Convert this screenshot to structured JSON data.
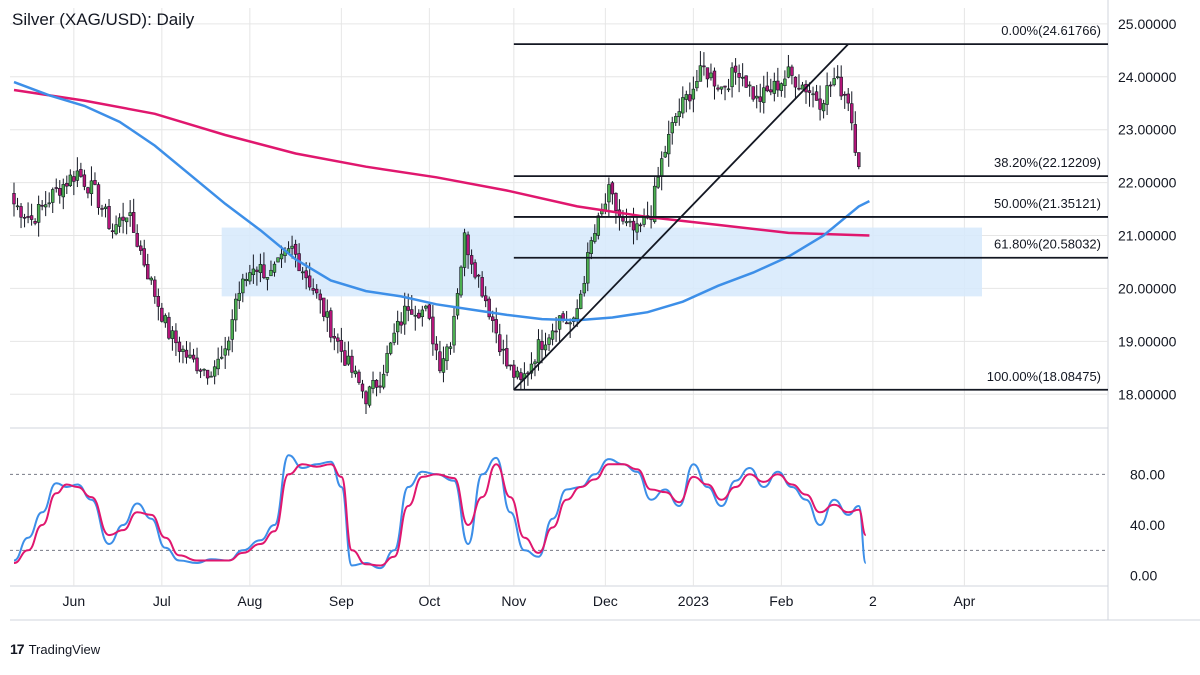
{
  "title": "Silver (XAG/USD): Daily",
  "brand": {
    "logo": "17",
    "name": "TradingView"
  },
  "colors": {
    "bull": "#4caf50",
    "bear": "#b5157a",
    "wick": "#131722",
    "sma_fast": "#3d8fe8",
    "sma_slow": "#e0176e",
    "zone": "#d6e9fb",
    "fib": "#131722",
    "stoch_k": "#3d8fe8",
    "stoch_d": "#e0176e",
    "grid": "#e6e6e6",
    "axis": "#131722"
  },
  "chart_data": [
    {
      "type": "candlestick",
      "panel": "price",
      "ylim": [
        17.4,
        25.3
      ],
      "yticks": [
        "25.00000",
        "24.00000",
        "23.00000",
        "22.00000",
        "21.00000",
        "20.00000",
        "19.00000",
        "18.00000"
      ],
      "ytick_values": [
        25,
        24,
        23,
        22,
        21,
        20,
        19,
        18
      ],
      "xticks": [
        "Jun",
        "Jul",
        "Aug",
        "Sep",
        "Oct",
        "Nov",
        "Dec",
        "2023",
        "Feb",
        "2",
        "Apr"
      ],
      "anchors": [
        [
          0,
          21.6
        ],
        [
          5,
          21.3
        ],
        [
          12,
          21.85
        ],
        [
          18,
          22.2
        ],
        [
          23,
          21.8
        ],
        [
          28,
          21.1
        ],
        [
          32,
          21.45
        ],
        [
          36,
          20.7
        ],
        [
          40,
          19.9
        ],
        [
          44,
          19.15
        ],
        [
          50,
          18.65
        ],
        [
          55,
          18.45
        ],
        [
          60,
          18.7
        ],
        [
          63,
          19.8
        ],
        [
          68,
          20.45
        ],
        [
          73,
          20.25
        ],
        [
          79,
          20.75
        ],
        [
          85,
          20.0
        ],
        [
          90,
          19.25
        ],
        [
          95,
          18.55
        ],
        [
          100,
          17.95
        ],
        [
          104,
          18.3
        ],
        [
          108,
          19.1
        ],
        [
          112,
          19.7
        ],
        [
          117,
          19.55
        ],
        [
          121,
          18.6
        ],
        [
          124,
          19.05
        ],
        [
          128,
          20.95
        ],
        [
          132,
          20.2
        ],
        [
          136,
          19.4
        ],
        [
          140,
          18.55
        ],
        [
          144,
          18.2
        ],
        [
          149,
          18.9
        ],
        [
          155,
          19.45
        ],
        [
          159,
          19.3
        ],
        [
          164,
          20.85
        ],
        [
          169,
          21.8
        ],
        [
          173,
          21.2
        ],
        [
          177,
          21.05
        ],
        [
          181,
          21.45
        ],
        [
          184,
          22.4
        ],
        [
          188,
          23.25
        ],
        [
          192,
          23.7
        ],
        [
          196,
          24.15
        ],
        [
          201,
          23.8
        ],
        [
          206,
          24.15
        ],
        [
          211,
          23.55
        ],
        [
          216,
          23.8
        ],
        [
          220,
          24.05
        ],
        [
          225,
          23.8
        ],
        [
          229,
          23.55
        ],
        [
          233,
          23.95
        ],
        [
          237,
          23.6
        ],
        [
          240,
          22.3
        ]
      ],
      "fib_levels": [
        {
          "label": "0.00%(24.61766)",
          "value": 24.61766
        },
        {
          "label": "38.20%(22.12209)",
          "value": 22.12209
        },
        {
          "label": "50.00%(21.35121)",
          "value": 21.35121
        },
        {
          "label": "61.80%(20.58032)",
          "value": 20.58032
        },
        {
          "label": "100.00%(18.08475)",
          "value": 18.08475
        }
      ],
      "zone": {
        "ymin": 19.85,
        "ymax": 21.15,
        "from": "Jul",
        "to": "Feb"
      },
      "sma_fast": [
        [
          0,
          23.9
        ],
        [
          10,
          23.65
        ],
        [
          20,
          23.45
        ],
        [
          30,
          23.15
        ],
        [
          40,
          22.7
        ],
        [
          50,
          22.15
        ],
        [
          60,
          21.6
        ],
        [
          70,
          21.1
        ],
        [
          80,
          20.55
        ],
        [
          90,
          20.15
        ],
        [
          100,
          19.95
        ],
        [
          110,
          19.85
        ],
        [
          120,
          19.7
        ],
        [
          130,
          19.6
        ],
        [
          140,
          19.5
        ],
        [
          150,
          19.42
        ],
        [
          160,
          19.4
        ],
        [
          170,
          19.45
        ],
        [
          180,
          19.55
        ],
        [
          190,
          19.75
        ],
        [
          200,
          20.05
        ],
        [
          210,
          20.3
        ],
        [
          220,
          20.6
        ],
        [
          230,
          21.0
        ],
        [
          240,
          21.55
        ],
        [
          243,
          21.65
        ]
      ],
      "sma_slow": [
        [
          0,
          23.75
        ],
        [
          20,
          23.55
        ],
        [
          40,
          23.3
        ],
        [
          60,
          22.9
        ],
        [
          80,
          22.55
        ],
        [
          100,
          22.3
        ],
        [
          120,
          22.1
        ],
        [
          140,
          21.85
        ],
        [
          160,
          21.55
        ],
        [
          180,
          21.35
        ],
        [
          200,
          21.2
        ],
        [
          220,
          21.05
        ],
        [
          243,
          21.0
        ]
      ]
    },
    {
      "type": "line",
      "panel": "stochastic",
      "ylim": [
        -5,
        115
      ],
      "yticks": [
        "80.00",
        "40.00",
        "0.00"
      ],
      "ytick_values": [
        80,
        40,
        0
      ],
      "overbought": 80,
      "oversold": 20,
      "series": [
        {
          "key": "k",
          "points": [
            [
              0,
              12
            ],
            [
              4,
              30
            ],
            [
              8,
              50
            ],
            [
              12,
              73
            ],
            [
              15,
              70
            ],
            [
              18,
              72
            ],
            [
              22,
              60
            ],
            [
              27,
              25
            ],
            [
              31,
              40
            ],
            [
              35,
              57
            ],
            [
              39,
              45
            ],
            [
              43,
              22
            ],
            [
              47,
              12
            ],
            [
              52,
              10
            ],
            [
              56,
              13
            ],
            [
              61,
              12
            ],
            [
              65,
              20
            ],
            [
              70,
              28
            ],
            [
              74,
              40
            ],
            [
              78,
              95
            ],
            [
              82,
              85
            ],
            [
              86,
              88
            ],
            [
              90,
              90
            ],
            [
              93,
              70
            ],
            [
              96,
              8
            ],
            [
              100,
              10
            ],
            [
              104,
              6
            ],
            [
              108,
              20
            ],
            [
              112,
              70
            ],
            [
              116,
              82
            ],
            [
              120,
              80
            ],
            [
              125,
              75
            ],
            [
              129,
              25
            ],
            [
              133,
              80
            ],
            [
              137,
              93
            ],
            [
              141,
              50
            ],
            [
              145,
              20
            ],
            [
              149,
              15
            ],
            [
              153,
              45
            ],
            [
              157,
              68
            ],
            [
              161,
              70
            ],
            [
              165,
              80
            ],
            [
              169,
              92
            ],
            [
              173,
              88
            ],
            [
              177,
              82
            ],
            [
              181,
              60
            ],
            [
              185,
              68
            ],
            [
              189,
              55
            ],
            [
              193,
              88
            ],
            [
              197,
              70
            ],
            [
              201,
              55
            ],
            [
              205,
              75
            ],
            [
              209,
              85
            ],
            [
              213,
              70
            ],
            [
              217,
              82
            ],
            [
              221,
              70
            ],
            [
              225,
              60
            ],
            [
              229,
              40
            ],
            [
              233,
              60
            ],
            [
              237,
              48
            ],
            [
              240,
              55
            ],
            [
              242,
              10
            ]
          ]
        },
        {
          "key": "d",
          "points": [
            [
              0,
              10
            ],
            [
              4,
              20
            ],
            [
              8,
              40
            ],
            [
              12,
              65
            ],
            [
              15,
              72
            ],
            [
              18,
              70
            ],
            [
              22,
              62
            ],
            [
              27,
              32
            ],
            [
              31,
              36
            ],
            [
              35,
              50
            ],
            [
              39,
              48
            ],
            [
              43,
              30
            ],
            [
              47,
              16
            ],
            [
              52,
              12
            ],
            [
              56,
              12
            ],
            [
              61,
              12
            ],
            [
              65,
              18
            ],
            [
              70,
              25
            ],
            [
              74,
              35
            ],
            [
              78,
              80
            ],
            [
              82,
              88
            ],
            [
              86,
              86
            ],
            [
              90,
              88
            ],
            [
              93,
              78
            ],
            [
              96,
              20
            ],
            [
              100,
              9
            ],
            [
              104,
              8
            ],
            [
              108,
              15
            ],
            [
              112,
              55
            ],
            [
              116,
              78
            ],
            [
              120,
              80
            ],
            [
              125,
              77
            ],
            [
              129,
              40
            ],
            [
              133,
              62
            ],
            [
              137,
              88
            ],
            [
              141,
              62
            ],
            [
              145,
              30
            ],
            [
              149,
              18
            ],
            [
              153,
              38
            ],
            [
              157,
              60
            ],
            [
              161,
              70
            ],
            [
              165,
              76
            ],
            [
              169,
              88
            ],
            [
              173,
              88
            ],
            [
              177,
              84
            ],
            [
              181,
              68
            ],
            [
              185,
              66
            ],
            [
              189,
              58
            ],
            [
              193,
              78
            ],
            [
              197,
              72
            ],
            [
              201,
              60
            ],
            [
              205,
              70
            ],
            [
              209,
              80
            ],
            [
              213,
              74
            ],
            [
              217,
              80
            ],
            [
              221,
              72
            ],
            [
              225,
              64
            ],
            [
              229,
              50
            ],
            [
              233,
              56
            ],
            [
              237,
              50
            ],
            [
              240,
              52
            ],
            [
              242,
              32
            ]
          ]
        }
      ]
    }
  ]
}
